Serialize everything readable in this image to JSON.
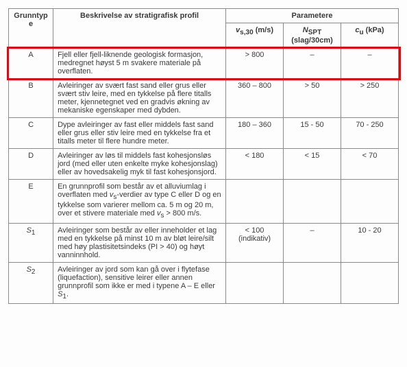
{
  "table": {
    "headers": {
      "grunntype": "Grunntype",
      "beskrivelse": "Beskrivelse av stratigrafisk profil",
      "parametere": "Parametere",
      "vs30": "v_{s,30} (m/s)",
      "nspt": "N_{SPT} (slag/30cm)",
      "cu": "c_{u} (kPa)"
    },
    "rows": [
      {
        "type": "A",
        "desc": "Fjell eller fjell-liknende geologisk formasjon, medregnet høyst 5 m svakere materiale på overflaten.",
        "vs30": "> 800",
        "nspt": "–",
        "cu": "–",
        "highlight": true
      },
      {
        "type": "B",
        "desc": "Avleiringer av svært fast sand eller grus eller svært stiv leire, med en tykkelse på flere titalls meter, kjennetegnet ved en gradvis økning av mekaniske egenskaper med dybden.",
        "vs30": "360 – 800",
        "nspt": "> 50",
        "cu": "> 250"
      },
      {
        "type": "C",
        "desc": "Dype avleiringer av fast eller middels fast sand eller grus eller stiv leire med en tykkelse fra et titalls meter til flere hundre meter.",
        "vs30": "180 – 360",
        "nspt": "15 - 50",
        "cu": "70 - 250"
      },
      {
        "type": "D",
        "desc": "Avleiringer av løs til middels fast kohesjonsløs jord (med eller uten enkelte myke kohesjonslag) eller av hovedsakelig myk til fast kohesjonsjord.",
        "vs30": "< 180",
        "nspt": "< 15",
        "cu": "< 70"
      },
      {
        "type": "E",
        "desc": "En grunnprofil som består av et alluviumlag i overflaten med v_{s}-verdier av type C eller D og en tykkelse som varierer mellom ca. 5 m og 20 m, over et stivere materiale med v_{s} > 800 m/s.",
        "vs30": "",
        "nspt": "",
        "cu": ""
      },
      {
        "type": "S_{1}",
        "desc": "Avleiringer som består av eller inneholder et lag med en tykkelse på minst 10 m av bløt leire/silt med høy plastisitetsindeks (PI > 40) og høyt vanninnhold.",
        "vs30": "< 100 (indikativ)",
        "nspt": "–",
        "cu": "10 - 20"
      },
      {
        "type": "S_{2}",
        "desc": "Avleiringer av jord som kan gå over i flytefase (liquefaction), sensitive leirer eller annen grunnprofil som ikke er med i typene A – E eller S_{1}.",
        "vs30": "",
        "nspt": "",
        "cu": ""
      }
    ],
    "highlight_color": "#e30613",
    "border_color": "#8a8a8a",
    "background_color": "#fdfdfd",
    "text_color": "#3a3a3a",
    "font_size": 11
  }
}
